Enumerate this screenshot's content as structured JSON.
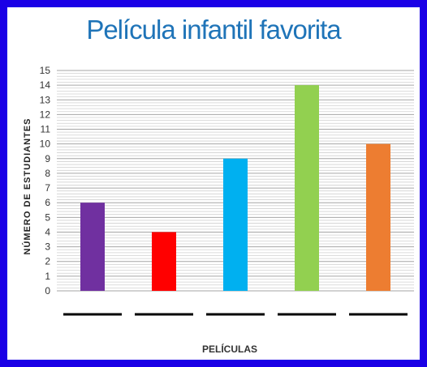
{
  "chart_data": {
    "type": "bar",
    "title": "Película infantil favorita",
    "xlabel": "PELÍCULAS",
    "ylabel": "NÚMERO DE ESTUDIANTES",
    "categories": [
      "",
      "",
      "",
      "",
      ""
    ],
    "values": [
      6,
      4,
      9,
      14,
      10
    ],
    "colors": [
      "#7030a0",
      "#ff0000",
      "#00b0f0",
      "#92d050",
      "#ed7d31"
    ],
    "ylim": [
      0,
      15
    ],
    "yticks": [
      0,
      1,
      2,
      3,
      4,
      5,
      6,
      7,
      8,
      9,
      10,
      11,
      12,
      13,
      14,
      15
    ],
    "grid": true
  }
}
